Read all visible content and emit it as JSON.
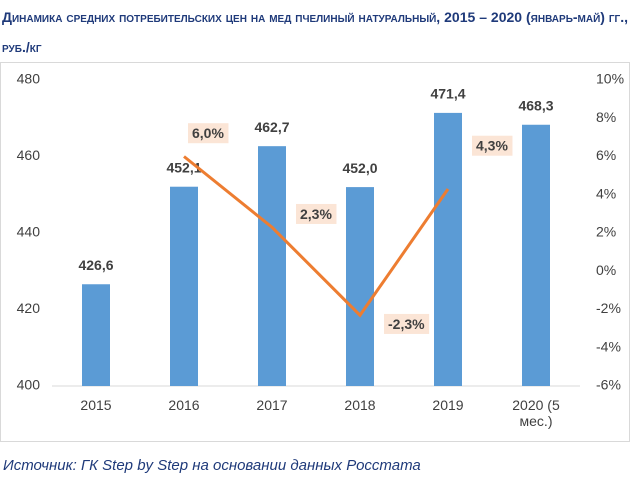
{
  "chart_data": {
    "type": "bar_line",
    "title": "Динамика средних потребительских цен на мед пчелиный натуральный, 2015 – 2020 (январь-май) гг., руб./кг",
    "source": "Источник: ГК Step by Step на основании данных Росстата",
    "categories": [
      "2015",
      "2016",
      "2017",
      "2018",
      "2019",
      "2020 (5 мес.)"
    ],
    "series": [
      {
        "type": "bar",
        "color": "#5b9bd5",
        "values": [
          426.6,
          452.1,
          462.7,
          452.0,
          471.4,
          468.3
        ],
        "value_labels": [
          "426,6",
          "452,1",
          "462,7",
          "452,0",
          "471,4",
          "468,3"
        ]
      },
      {
        "type": "line",
        "axis": "y2",
        "color": "#ed7d31",
        "values": [
          null,
          6.0,
          2.3,
          -2.3,
          4.3,
          null
        ],
        "value_labels": [
          null,
          "6,0%",
          "2,3%",
          "-2,3%",
          "4,3%",
          null
        ]
      }
    ],
    "ylim": [
      400,
      480
    ],
    "yticks": [
      400,
      420,
      440,
      460,
      480
    ],
    "y2lim": [
      -6,
      10
    ],
    "y2ticks": [
      {
        "value": -6,
        "label": "-6%"
      },
      {
        "value": -4,
        "label": "-4%"
      },
      {
        "value": -2,
        "label": "-2%"
      },
      {
        "value": 0,
        "label": "0%"
      },
      {
        "value": 2,
        "label": "2%"
      },
      {
        "value": 4,
        "label": "4%"
      },
      {
        "value": 6,
        "label": "6%"
      },
      {
        "value": 8,
        "label": "8%"
      },
      {
        "value": 10,
        "label": "10%"
      }
    ],
    "grid": false
  }
}
